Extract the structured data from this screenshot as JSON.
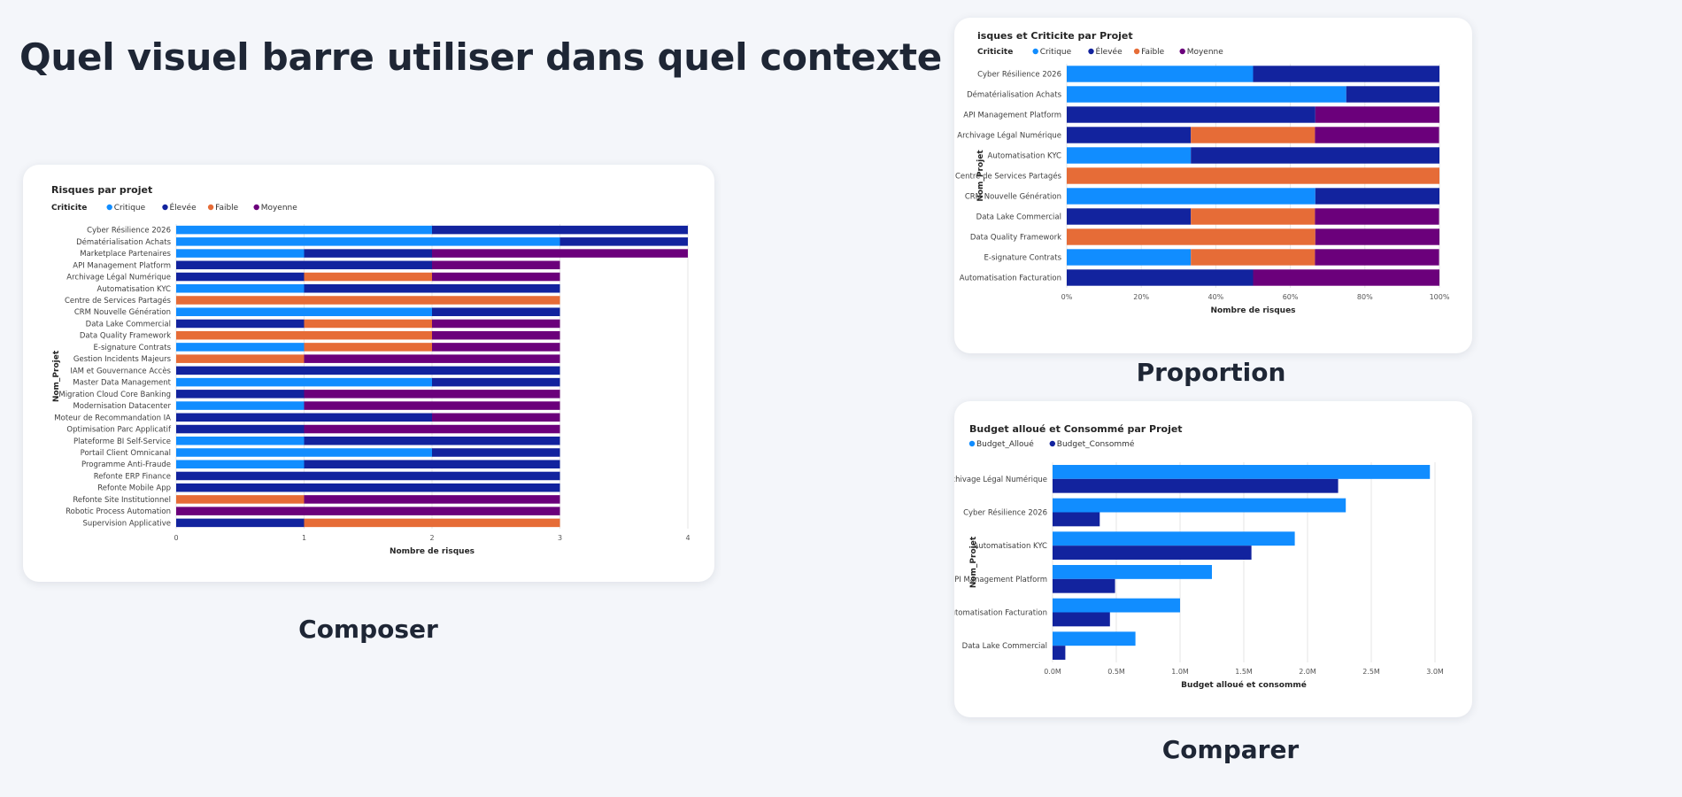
{
  "page": {
    "title": "Quel visuel barre utiliser dans quel contexte"
  },
  "colors": {
    "Critique": "#118dff",
    "Élevée": "#12239e",
    "Faible": "#e66c37",
    "Moyenne": "#6b007b",
    "Budget_Alloué": "#118dff",
    "Budget_Consommé": "#12239e"
  },
  "captions": {
    "composer": "Composer",
    "proportion": "Proportion",
    "comparer": "Comparer"
  },
  "chart_data": [
    {
      "id": "composer",
      "type": "bar",
      "stacked": true,
      "title": "Risques par projet",
      "legend_title": "Criticite",
      "xlabel": "Nombre de risques",
      "ylabel": "Nom_Projet",
      "xlim": [
        0,
        4
      ],
      "xticks": [
        "0",
        "1",
        "2",
        "3",
        "4"
      ],
      "grid": true,
      "legend": "top-left",
      "categories": [
        "Cyber Résilience 2026",
        "Dématérialisation Achats",
        "Marketplace Partenaires",
        "API Management Platform",
        "Archivage Légal Numérique",
        "Automatisation KYC",
        "Centre de Services Partagés",
        "CRM Nouvelle Génération",
        "Data Lake Commercial",
        "Data Quality Framework",
        "E-signature Contrats",
        "Gestion Incidents Majeurs",
        "IAM et Gouvernance Accès",
        "Master Data Management",
        "Migration Cloud Core Banking",
        "Modernisation Datacenter",
        "Moteur de Recommandation IA",
        "Optimisation Parc Applicatif",
        "Plateforme BI Self-Service",
        "Portail Client Omnicanal",
        "Programme Anti-Fraude",
        "Refonte ERP Finance",
        "Refonte Mobile App",
        "Refonte Site Institutionnel",
        "Robotic Process Automation",
        "Supervision Applicative"
      ],
      "series": [
        {
          "name": "Critique",
          "values": [
            2,
            3,
            1,
            0,
            0,
            1,
            0,
            2,
            0,
            0,
            1,
            0,
            0,
            2,
            0,
            1,
            0,
            0,
            1,
            2,
            1,
            0,
            0,
            0,
            0,
            0
          ]
        },
        {
          "name": "Élevée",
          "values": [
            2,
            1,
            1,
            2,
            1,
            2,
            0,
            1,
            1,
            0,
            0,
            0,
            3,
            1,
            1,
            0,
            2,
            1,
            2,
            1,
            2,
            3,
            3,
            0,
            0,
            1
          ]
        },
        {
          "name": "Faible",
          "values": [
            0,
            0,
            0,
            0,
            1,
            0,
            3,
            0,
            1,
            2,
            1,
            1,
            0,
            0,
            0,
            0,
            0,
            0,
            0,
            0,
            0,
            0,
            0,
            1,
            0,
            2
          ]
        },
        {
          "name": "Moyenne",
          "values": [
            0,
            0,
            2,
            1,
            1,
            0,
            0,
            0,
            1,
            1,
            1,
            2,
            0,
            0,
            2,
            2,
            1,
            2,
            0,
            0,
            0,
            0,
            0,
            2,
            3,
            0
          ]
        }
      ]
    },
    {
      "id": "proportion",
      "type": "bar",
      "stacked_percent": true,
      "title": "isques et Criticite par Projet",
      "legend_title": "Criticite",
      "xlabel": "Nombre de risques",
      "ylabel": "Nom_Projet",
      "xlim": [
        0,
        100
      ],
      "xticks": [
        "0%",
        "20%",
        "40%",
        "60%",
        "80%",
        "100%"
      ],
      "grid": true,
      "legend": "top-left",
      "categories": [
        "Cyber Résilience 2026",
        "Dématérialisation Achats",
        "API Management Platform",
        "Archivage Légal Numérique",
        "Automatisation KYC",
        "Centre de Services Partagés",
        "CRM Nouvelle Génération",
        "Data Lake Commercial",
        "Data Quality Framework",
        "E-signature Contrats",
        "Automatisation Facturation"
      ],
      "series": [
        {
          "name": "Critique",
          "values": [
            50,
            75,
            0,
            0,
            33.3,
            0,
            66.7,
            0,
            0,
            33.3,
            0
          ]
        },
        {
          "name": "Élevée",
          "values": [
            50,
            25,
            66.7,
            33.3,
            66.7,
            0,
            33.3,
            33.3,
            0,
            0,
            50
          ]
        },
        {
          "name": "Faible",
          "values": [
            0,
            0,
            0,
            33.3,
            0,
            100,
            0,
            33.3,
            66.7,
            33.3,
            0
          ]
        },
        {
          "name": "Moyenne",
          "values": [
            0,
            0,
            33.3,
            33.3,
            0,
            0,
            0,
            33.3,
            33.3,
            33.3,
            50
          ]
        }
      ]
    },
    {
      "id": "comparer",
      "type": "bar",
      "clustered": true,
      "title": "Budget alloué et Consommé par Projet",
      "xlabel": "Budget alloué et consommé",
      "ylabel": "Nom_Projet",
      "xlim": [
        0,
        3.0
      ],
      "xticks": [
        "0.0M",
        "0.5M",
        "1.0M",
        "1.5M",
        "2.0M",
        "2.5M",
        "3.0M"
      ],
      "grid": true,
      "legend": "top-left",
      "categories": [
        "Archivage Légal Numérique",
        "Cyber Résilience 2026",
        "Automatisation KYC",
        "API Management Platform",
        "Automatisation Facturation",
        "Data Lake Commercial"
      ],
      "series": [
        {
          "name": "Budget_Alloué",
          "values": [
            2.96,
            2.3,
            1.9,
            1.25,
            1.0,
            0.65
          ]
        },
        {
          "name": "Budget_Consommé",
          "values": [
            2.24,
            0.37,
            1.56,
            0.49,
            0.45,
            0.1
          ]
        }
      ]
    }
  ]
}
